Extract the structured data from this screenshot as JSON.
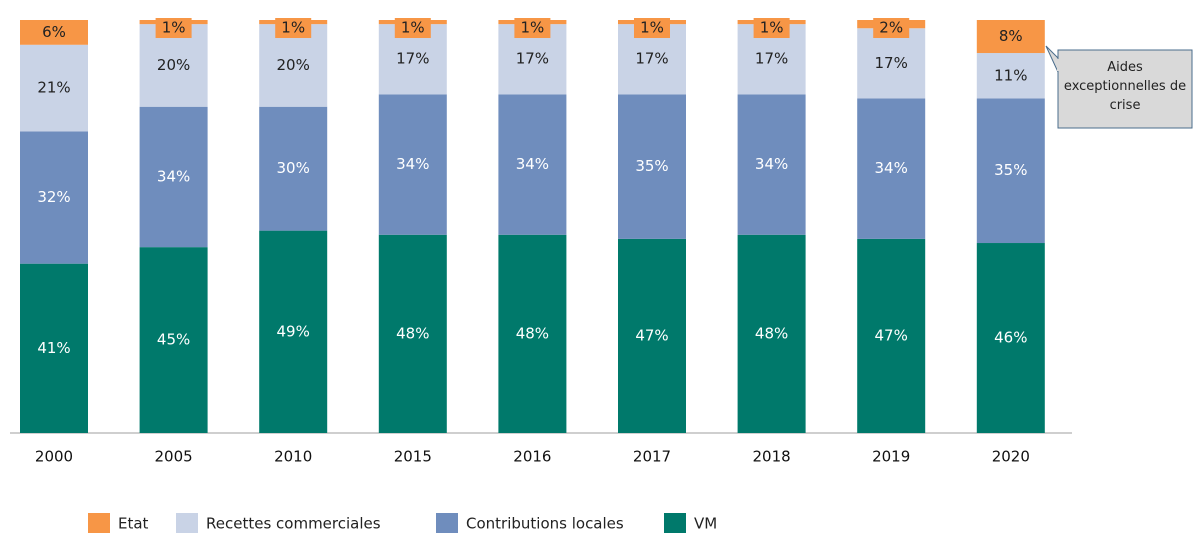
{
  "chart_data": {
    "type": "stacked_bar",
    "categories": [
      "2000",
      "2005",
      "2010",
      "2015",
      "2016",
      "2017",
      "2018",
      "2019",
      "2020"
    ],
    "series": [
      {
        "name": "Etat",
        "color": "#f79646",
        "values": [
          6,
          1,
          1,
          1,
          1,
          1,
          1,
          2,
          8
        ],
        "value_labels": [
          "6%",
          "1%",
          "1%",
          "1%",
          "1%",
          "1%",
          "1%",
          "2%",
          "8%"
        ]
      },
      {
        "name": "Recettes commerciales",
        "color": "#c9d3e6",
        "values": [
          21,
          20,
          20,
          17,
          17,
          17,
          17,
          17,
          11
        ],
        "value_labels": [
          "21%",
          "20%",
          "20%",
          "17%",
          "17%",
          "17%",
          "17%",
          "17%",
          "11%"
        ]
      },
      {
        "name": "Contributions locales",
        "color": "#6f8dbd",
        "values": [
          32,
          34,
          30,
          34,
          34,
          35,
          34,
          34,
          35
        ],
        "value_labels": [
          "32%",
          "34%",
          "30%",
          "34%",
          "34%",
          "35%",
          "34%",
          "34%",
          "35%"
        ]
      },
      {
        "name": "VM",
        "color": "#00796b",
        "values": [
          41,
          45,
          49,
          48,
          48,
          47,
          48,
          47,
          46
        ],
        "value_labels": [
          "41%",
          "45%",
          "49%",
          "48%",
          "48%",
          "47%",
          "48%",
          "47%",
          "46%"
        ]
      }
    ],
    "ylim": [
      0,
      100
    ],
    "annotation": "Aides exceptionnelles de crise"
  }
}
